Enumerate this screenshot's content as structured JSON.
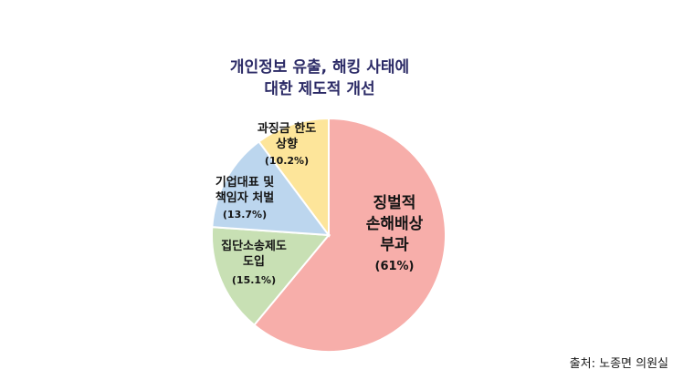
{
  "chart_data": {
    "type": "pie",
    "title_lines": [
      "개인정보 유출, 해킹 사태에",
      "대한 제도적 개선"
    ],
    "slices": [
      {
        "label_lines": [
          "징벌적",
          "손해배상",
          "부과"
        ],
        "value": 61,
        "value_label": "(61%)",
        "color": "#f7aeaa"
      },
      {
        "label_lines": [
          "집단소송제도",
          "도입"
        ],
        "value": 15.1,
        "value_label": "(15.1%)",
        "color": "#c8e0b4"
      },
      {
        "label_lines": [
          "기업대표 및",
          "책임자 처벌"
        ],
        "value": 13.7,
        "value_label": "(13.7%)",
        "color": "#bcd6ee"
      },
      {
        "label_lines": [
          "과징금 한도",
          "상향"
        ],
        "value": 10.2,
        "value_label": "(10.2%)",
        "color": "#fde59a"
      }
    ],
    "start": "top",
    "direction": "clockwise",
    "legend": "none"
  },
  "source": "출처: 노종면 의원실"
}
